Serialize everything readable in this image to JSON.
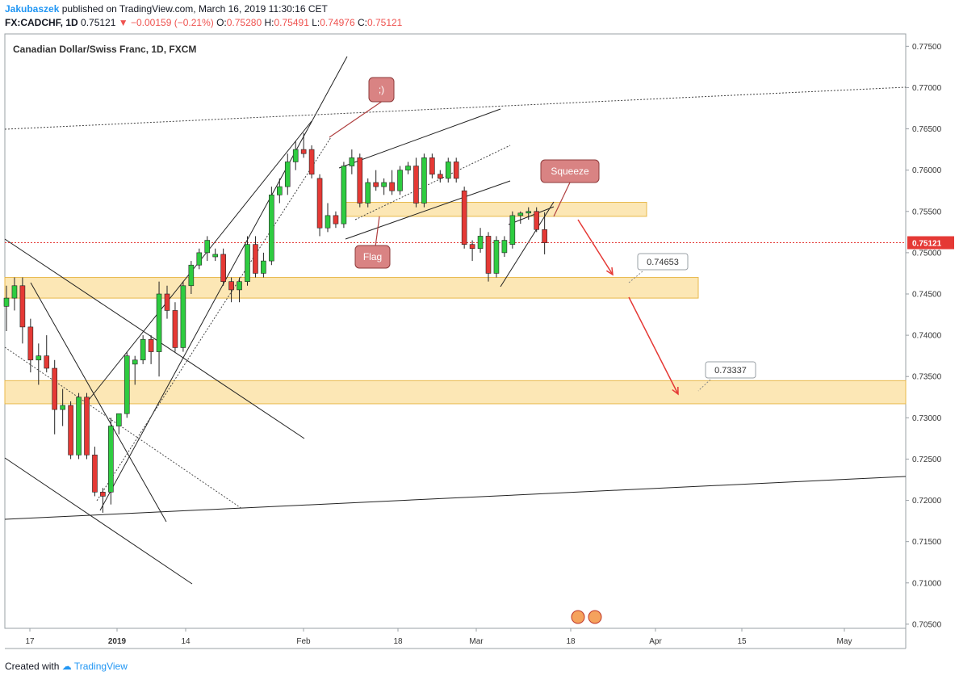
{
  "header": {
    "author": "Jakubaszek",
    "published": "published on TradingView.com, March 16, 2019 11:30:16 CET",
    "symbol": "FX:CADCHF, 1D",
    "last": "0.75121",
    "change": "−0.00159 (−0.21%)",
    "o_label": "O:",
    "open": "0.75280",
    "h_label": "H:",
    "high": "0.75491",
    "l_label": "L:",
    "low": "0.74976",
    "c_label": "C:",
    "close": "0.75121"
  },
  "legend": "Canadian Dollar/Swiss Franc, 1D, FXCM",
  "footer": {
    "created_with": "Created with",
    "brand": "TradingView"
  },
  "colors": {
    "up": "#2ecc40",
    "down": "#e53935",
    "zone": "#fbe3a8",
    "zone_border": "#e8b84a",
    "callout": "#d98383",
    "arrow": "#e53935"
  },
  "chart_data": {
    "type": "candlestick",
    "ylim": [
      0.7045,
      0.7765
    ],
    "y_ticks": [
      "0.77500",
      "0.77000",
      "0.76500",
      "0.76000",
      "0.75500",
      "0.75000",
      "0.74500",
      "0.74000",
      "0.73500",
      "0.73000",
      "0.72500",
      "0.72000",
      "0.71500",
      "0.71000",
      "0.70500"
    ],
    "x_ticks": [
      "17",
      "2019",
      "14",
      "Feb",
      "18",
      "Mar",
      "18",
      "Apr",
      "15",
      "May"
    ],
    "last_price_label": "0.75121",
    "candles": [
      {
        "o": 0.7435,
        "h": 0.746,
        "l": 0.7405,
        "c": 0.7445
      },
      {
        "o": 0.7445,
        "h": 0.747,
        "l": 0.743,
        "c": 0.746
      },
      {
        "o": 0.746,
        "h": 0.747,
        "l": 0.739,
        "c": 0.741
      },
      {
        "o": 0.741,
        "h": 0.742,
        "l": 0.7355,
        "c": 0.737
      },
      {
        "o": 0.737,
        "h": 0.739,
        "l": 0.734,
        "c": 0.7375
      },
      {
        "o": 0.7375,
        "h": 0.74,
        "l": 0.7355,
        "c": 0.736
      },
      {
        "o": 0.736,
        "h": 0.737,
        "l": 0.728,
        "c": 0.731
      },
      {
        "o": 0.731,
        "h": 0.7335,
        "l": 0.729,
        "c": 0.7315
      },
      {
        "o": 0.7315,
        "h": 0.732,
        "l": 0.725,
        "c": 0.7255
      },
      {
        "o": 0.7255,
        "h": 0.733,
        "l": 0.725,
        "c": 0.7325
      },
      {
        "o": 0.7325,
        "h": 0.733,
        "l": 0.725,
        "c": 0.7255
      },
      {
        "o": 0.7255,
        "h": 0.7265,
        "l": 0.7205,
        "c": 0.721
      },
      {
        "o": 0.721,
        "h": 0.7215,
        "l": 0.7185,
        "c": 0.7205
      },
      {
        "o": 0.721,
        "h": 0.73,
        "l": 0.7195,
        "c": 0.729
      },
      {
        "o": 0.729,
        "h": 0.7305,
        "l": 0.728,
        "c": 0.7305
      },
      {
        "o": 0.7305,
        "h": 0.738,
        "l": 0.73,
        "c": 0.7375
      },
      {
        "o": 0.7365,
        "h": 0.7375,
        "l": 0.734,
        "c": 0.737
      },
      {
        "o": 0.737,
        "h": 0.74,
        "l": 0.7365,
        "c": 0.7395
      },
      {
        "o": 0.7395,
        "h": 0.74,
        "l": 0.7365,
        "c": 0.738
      },
      {
        "o": 0.738,
        "h": 0.7465,
        "l": 0.735,
        "c": 0.745
      },
      {
        "o": 0.745,
        "h": 0.746,
        "l": 0.742,
        "c": 0.743
      },
      {
        "o": 0.743,
        "h": 0.744,
        "l": 0.738,
        "c": 0.7385
      },
      {
        "o": 0.7385,
        "h": 0.7465,
        "l": 0.738,
        "c": 0.746
      },
      {
        "o": 0.746,
        "h": 0.749,
        "l": 0.745,
        "c": 0.7485
      },
      {
        "o": 0.7485,
        "h": 0.7505,
        "l": 0.748,
        "c": 0.75
      },
      {
        "o": 0.75,
        "h": 0.752,
        "l": 0.749,
        "c": 0.7515
      },
      {
        "o": 0.7495,
        "h": 0.7505,
        "l": 0.749,
        "c": 0.7498
      },
      {
        "o": 0.7498,
        "h": 0.7505,
        "l": 0.746,
        "c": 0.7465
      },
      {
        "o": 0.7465,
        "h": 0.747,
        "l": 0.744,
        "c": 0.7455
      },
      {
        "o": 0.7455,
        "h": 0.747,
        "l": 0.744,
        "c": 0.7465
      },
      {
        "o": 0.7465,
        "h": 0.752,
        "l": 0.746,
        "c": 0.751
      },
      {
        "o": 0.751,
        "h": 0.752,
        "l": 0.747,
        "c": 0.7475
      },
      {
        "o": 0.7475,
        "h": 0.75,
        "l": 0.747,
        "c": 0.749
      },
      {
        "o": 0.749,
        "h": 0.758,
        "l": 0.7485,
        "c": 0.757
      },
      {
        "o": 0.757,
        "h": 0.759,
        "l": 0.756,
        "c": 0.758
      },
      {
        "o": 0.758,
        "h": 0.762,
        "l": 0.757,
        "c": 0.761
      },
      {
        "o": 0.761,
        "h": 0.7635,
        "l": 0.76,
        "c": 0.7625
      },
      {
        "o": 0.7625,
        "h": 0.7645,
        "l": 0.7615,
        "c": 0.762
      },
      {
        "o": 0.7625,
        "h": 0.763,
        "l": 0.759,
        "c": 0.7595
      },
      {
        "o": 0.759,
        "h": 0.7595,
        "l": 0.752,
        "c": 0.753
      },
      {
        "o": 0.753,
        "h": 0.756,
        "l": 0.7525,
        "c": 0.7545
      },
      {
        "o": 0.7545,
        "h": 0.755,
        "l": 0.753,
        "c": 0.7535
      },
      {
        "o": 0.7535,
        "h": 0.761,
        "l": 0.753,
        "c": 0.7605
      },
      {
        "o": 0.7605,
        "h": 0.7625,
        "l": 0.7595,
        "c": 0.7615
      },
      {
        "o": 0.7615,
        "h": 0.762,
        "l": 0.7555,
        "c": 0.756
      },
      {
        "o": 0.756,
        "h": 0.759,
        "l": 0.7555,
        "c": 0.7585
      },
      {
        "o": 0.7585,
        "h": 0.76,
        "l": 0.7575,
        "c": 0.758
      },
      {
        "o": 0.758,
        "h": 0.759,
        "l": 0.757,
        "c": 0.7585
      },
      {
        "o": 0.7585,
        "h": 0.76,
        "l": 0.757,
        "c": 0.7575
      },
      {
        "o": 0.7575,
        "h": 0.7605,
        "l": 0.757,
        "c": 0.76
      },
      {
        "o": 0.76,
        "h": 0.761,
        "l": 0.7595,
        "c": 0.7605
      },
      {
        "o": 0.7605,
        "h": 0.7615,
        "l": 0.7555,
        "c": 0.756
      },
      {
        "o": 0.756,
        "h": 0.762,
        "l": 0.7555,
        "c": 0.7615
      },
      {
        "o": 0.7615,
        "h": 0.762,
        "l": 0.759,
        "c": 0.7595
      },
      {
        "o": 0.7595,
        "h": 0.76,
        "l": 0.7585,
        "c": 0.759
      },
      {
        "o": 0.759,
        "h": 0.7615,
        "l": 0.7585,
        "c": 0.761
      },
      {
        "o": 0.761,
        "h": 0.7615,
        "l": 0.7585,
        "c": 0.759
      },
      {
        "o": 0.7575,
        "h": 0.758,
        "l": 0.7505,
        "c": 0.751
      },
      {
        "o": 0.751,
        "h": 0.7515,
        "l": 0.749,
        "c": 0.7505
      },
      {
        "o": 0.7505,
        "h": 0.753,
        "l": 0.75,
        "c": 0.752
      },
      {
        "o": 0.752,
        "h": 0.7525,
        "l": 0.7465,
        "c": 0.7475
      },
      {
        "o": 0.7475,
        "h": 0.752,
        "l": 0.747,
        "c": 0.7515
      },
      {
        "o": 0.75,
        "h": 0.752,
        "l": 0.7495,
        "c": 0.7515
      },
      {
        "o": 0.751,
        "h": 0.755,
        "l": 0.7505,
        "c": 0.7545
      },
      {
        "o": 0.7545,
        "h": 0.755,
        "l": 0.7535,
        "c": 0.7548
      },
      {
        "o": 0.7548,
        "h": 0.7555,
        "l": 0.754,
        "c": 0.755
      },
      {
        "o": 0.755,
        "h": 0.7555,
        "l": 0.7525,
        "c": 0.7528
      },
      {
        "o": 0.7528,
        "h": 0.7549,
        "l": 0.7498,
        "c": 0.7512
      }
    ],
    "zones": [
      {
        "top": 0.747,
        "bottom": 0.7445
      },
      {
        "top": 0.7345,
        "bottom": 0.7317
      },
      {
        "top": 0.7561,
        "bottom": 0.7544
      }
    ],
    "annotations": [
      {
        "type": "callout",
        "text": ";)"
      },
      {
        "type": "callout",
        "text": "Flag"
      },
      {
        "type": "callout",
        "text": "Squeeze"
      },
      {
        "type": "price_label",
        "text": "0.74653"
      },
      {
        "type": "price_label",
        "text": "0.73337"
      }
    ]
  }
}
